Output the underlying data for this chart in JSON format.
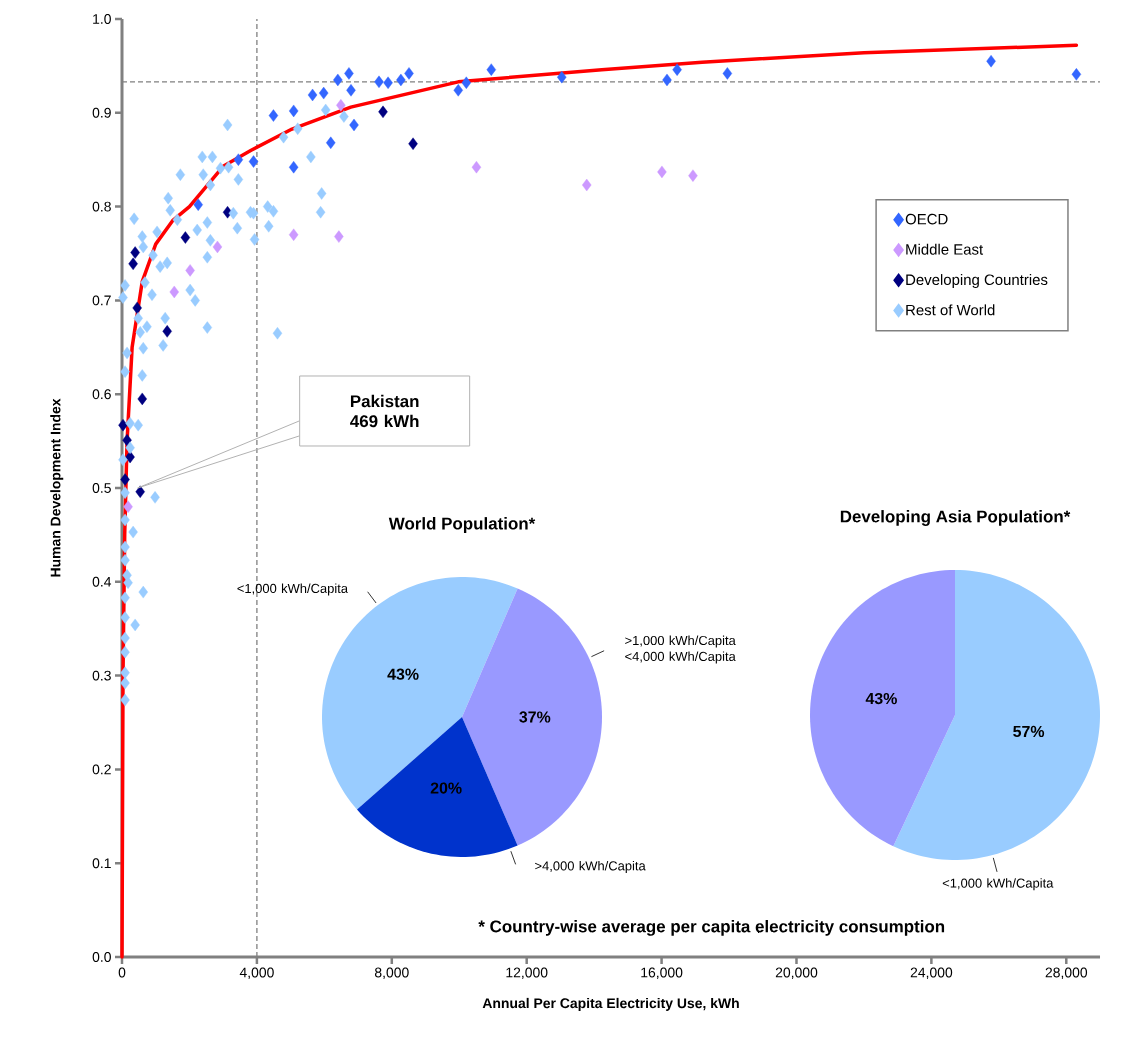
{
  "chart_data": [
    {
      "type": "scatter",
      "xlabel": "Annual Per Capita Electricity Use, kWh",
      "ylabel": "Human Development Index",
      "xlim": [
        0,
        29000
      ],
      "ylim": [
        0,
        1
      ],
      "xticks": [
        {
          "value": 0,
          "label": "0"
        },
        {
          "value": 4000,
          "label": "4,000"
        },
        {
          "value": 8000,
          "label": "8,000"
        },
        {
          "value": 12000,
          "label": "12,000"
        },
        {
          "value": 16000,
          "label": "16,000"
        },
        {
          "value": 20000,
          "label": "20,000"
        },
        {
          "value": 24000,
          "label": "24,000"
        },
        {
          "value": 28000,
          "label": "28,000"
        }
      ],
      "yticks": [
        {
          "value": 0,
          "label": "0.0"
        },
        {
          "value": 0.1,
          "label": "0.1"
        },
        {
          "value": 0.2,
          "label": "0.2"
        },
        {
          "value": 0.3,
          "label": "0.3"
        },
        {
          "value": 0.4,
          "label": "0.4"
        },
        {
          "value": 0.5,
          "label": "0.5"
        },
        {
          "value": 0.6,
          "label": "0.6"
        },
        {
          "value": 0.7,
          "label": "0.7"
        },
        {
          "value": 0.8,
          "label": "0.8"
        },
        {
          "value": 0.9,
          "label": "0.9"
        },
        {
          "value": 1,
          "label": "1.0"
        }
      ],
      "marker": "diamond",
      "legend": "top right",
      "series": [
        {
          "type": "line",
          "marker": "none",
          "color": "#ff0000",
          "x": [
            0,
            30,
            80,
            150,
            300,
            600,
            1000,
            1500,
            2000,
            3000,
            3830,
            5000,
            6785,
            9970,
            14225,
            17200,
            22000,
            28300
          ],
          "values": [
            0,
            0.3,
            0.45,
            0.55,
            0.65,
            0.72,
            0.76,
            0.785,
            0.8,
            0.843,
            0.86,
            0.882,
            0.906,
            0.933,
            0.946,
            0.954,
            0.964,
            0.972
          ]
        },
        {
          "name": "OECD",
          "color": "#3366ff",
          "x": [
            2260,
            3450,
            3900,
            4490,
            5090,
            5090,
            5650,
            5980,
            6190,
            6400,
            6730,
            6790,
            6880,
            7620,
            7890,
            8270,
            8510,
            9970,
            10210,
            10950,
            13040,
            16160,
            16460,
            17950,
            25770,
            28300
          ],
          "values": [
            0.802,
            0.85,
            0.848,
            0.897,
            0.902,
            0.842,
            0.919,
            0.921,
            0.868,
            0.935,
            0.942,
            0.924,
            0.887,
            0.933,
            0.932,
            0.935,
            0.942,
            0.924,
            0.932,
            0.946,
            0.938,
            0.935,
            0.946,
            0.942,
            0.955,
            0.941
          ]
        },
        {
          "name": "Middle East",
          "color": "#cc99ff",
          "x": [
            180,
            1550,
            2020,
            2830,
            5090,
            6430,
            6490,
            10510,
            13780,
            16010,
            16930
          ],
          "values": [
            0.48,
            0.709,
            0.732,
            0.757,
            0.77,
            0.768,
            0.908,
            0.842,
            0.823,
            0.837,
            0.833
          ]
        },
        {
          "name": "Developing Countries",
          "color": "#000080",
          "x": [
            30,
            150,
            240,
            90,
            540,
            600,
            450,
            1340,
            390,
            330,
            1880,
            3130,
            7740,
            8630
          ],
          "values": [
            0.567,
            0.551,
            0.533,
            0.509,
            0.496,
            0.595,
            0.692,
            0.667,
            0.751,
            0.739,
            0.767,
            0.794,
            0.901,
            0.867
          ]
        },
        {
          "name": "Rest of World",
          "color": "#99ccff",
          "x": [
            6040,
            4790,
            5210,
            6580,
            5600,
            5920,
            5890,
            4320,
            4490,
            4350,
            3900,
            3930,
            4610,
            3130,
            2380,
            2680,
            1730,
            2410,
            2620,
            3450,
            3160,
            2920,
            1370,
            1430,
            1640,
            2530,
            2230,
            2620,
            2530,
            2020,
            2170,
            3300,
            3420,
            3810,
            360,
            600,
            1040,
            630,
            920,
            1340,
            1130,
            680,
            90,
            30,
            890,
            480,
            740,
            540,
            1280,
            1220,
            630,
            150,
            90,
            600,
            240,
            480,
            240,
            30,
            2530,
            90,
            980,
            90,
            330,
            90,
            90,
            150,
            180,
            630,
            90,
            90,
            390,
            90,
            90,
            90,
            90,
            90
          ],
          "values": [
            0.903,
            0.874,
            0.883,
            0.896,
            0.853,
            0.814,
            0.794,
            0.8,
            0.795,
            0.779,
            0.793,
            0.765,
            0.665,
            0.887,
            0.853,
            0.853,
            0.834,
            0.834,
            0.823,
            0.829,
            0.842,
            0.841,
            0.809,
            0.796,
            0.786,
            0.783,
            0.775,
            0.764,
            0.746,
            0.711,
            0.7,
            0.793,
            0.777,
            0.794,
            0.787,
            0.768,
            0.773,
            0.757,
            0.748,
            0.74,
            0.736,
            0.719,
            0.716,
            0.703,
            0.706,
            0.681,
            0.672,
            0.666,
            0.681,
            0.652,
            0.649,
            0.644,
            0.624,
            0.62,
            0.569,
            0.567,
            0.543,
            0.53,
            0.671,
            0.495,
            0.49,
            0.466,
            0.453,
            0.437,
            0.423,
            0.407,
            0.399,
            0.389,
            0.383,
            0.362,
            0.354,
            0.34,
            0.325,
            0.303,
            0.292,
            0.274
          ]
        }
      ],
      "ref_lines": [
        {
          "axis": "x",
          "value": 4000,
          "color": "#808080",
          "line_style": "dashed"
        },
        {
          "axis": "y",
          "value": 0.933,
          "color": "#808080",
          "line_style": "dashed"
        }
      ],
      "annotations": [
        "Pakistan 469 kWh",
        "* Country-wise average per capita electricity consumption"
      ]
    },
    {
      "type": "pie",
      "title": "World Population*",
      "categories": [
        "<1,000 kWh/Capita",
        ">1,000 kWh/Capita <4,000 kWh/Capita",
        ">4,000 kWh/Capita"
      ],
      "values": [
        43,
        37,
        20
      ],
      "colors": [
        "#99ccff",
        "#9999ff",
        "#0033cc"
      ],
      "value_labels": [
        "43%",
        "37%",
        "20%"
      ]
    },
    {
      "type": "pie",
      "title": "Developing Asia Population*",
      "categories": [
        "<1,000 kWh/Capita",
        null
      ],
      "values": [
        57,
        43
      ],
      "colors": [
        "#99ccff",
        "#9999ff"
      ],
      "value_labels": [
        "57%",
        "43%"
      ]
    }
  ]
}
